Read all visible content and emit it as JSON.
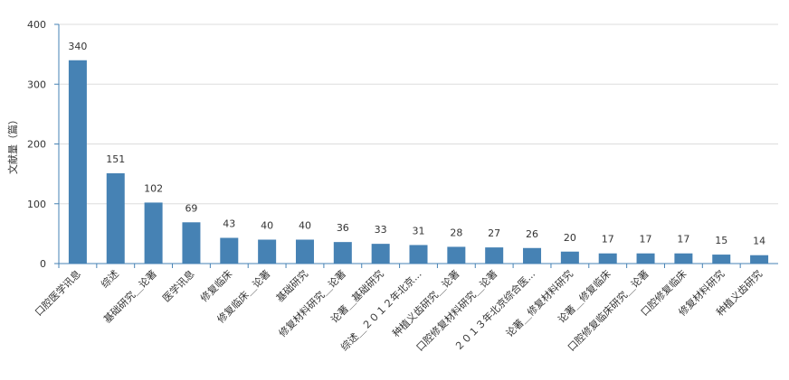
{
  "chart_data": {
    "type": "bar",
    "y_label": "文献量（篇）",
    "categories": [
      "口腔医学讯息",
      "综述",
      "基础研究＿论著",
      "医学讯息",
      "修复临床",
      "修复临床＿论著",
      "基础研究",
      "修复材料研究＿论著",
      "论著＿基础研究",
      "综述＿２０１２年北京...",
      "种植义齿研究＿论著",
      "口腔修复材料研究＿论著",
      "２０１３年北京综合医...",
      "论著＿修复材料研究",
      "论著＿修复临床",
      "口腔修复临床研究＿论著",
      "口腔修复临床",
      "修复材料研究",
      "种植义齿研究"
    ],
    "values": [
      340,
      151,
      102,
      69,
      43,
      40,
      40,
      36,
      33,
      31,
      28,
      27,
      26,
      20,
      17,
      17,
      17,
      15,
      14
    ],
    "color": "#4682b4",
    "ylim": [
      0,
      400
    ],
    "yticks": [
      0,
      100,
      200,
      300,
      400
    ],
    "grid": true
  }
}
